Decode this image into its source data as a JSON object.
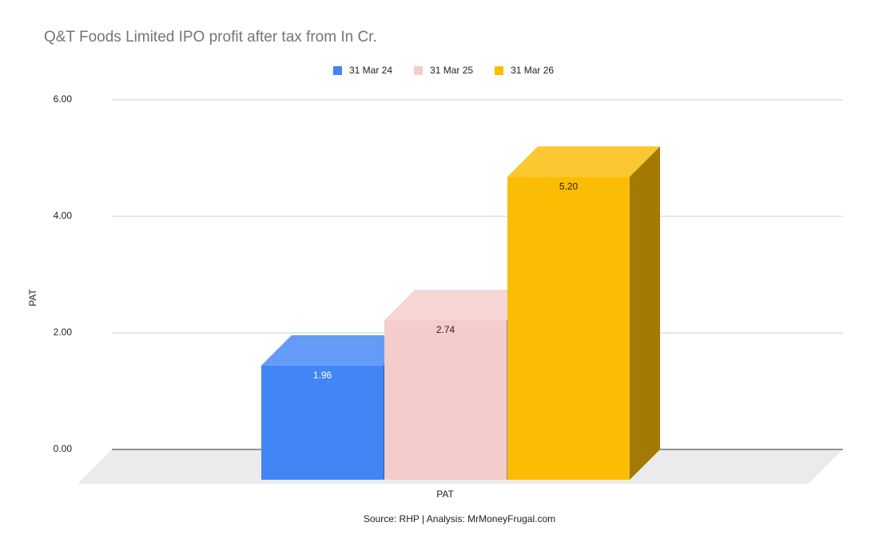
{
  "chart_data": {
    "type": "bar3d",
    "title": "Q&T Foods Limited IPO profit after tax from In Cr.",
    "y_label": "PAT",
    "source": "Source: RHP | Analysis: MrMoneyFrugal.com",
    "categories": [
      "PAT"
    ],
    "series": [
      {
        "name": "31 Mar 24",
        "color": "#4285f4",
        "values": [
          1.96
        ],
        "value_labels": [
          "1.96"
        ]
      },
      {
        "name": "31 Mar 25",
        "color": "#f4cccc",
        "values": [
          2.74
        ],
        "value_labels": [
          "2.74"
        ]
      },
      {
        "name": "31 Mar 26",
        "color": "#fbbc04",
        "values": [
          5.2
        ],
        "value_labels": [
          "5.20"
        ]
      }
    ],
    "ylim": [
      0,
      6
    ],
    "yticks": [
      {
        "value": 0,
        "label": "0.00"
      },
      {
        "value": 2,
        "label": "2.00"
      },
      {
        "value": 4,
        "label": "4.00"
      },
      {
        "value": 6,
        "label": "6.00"
      }
    ],
    "grid": true
  }
}
